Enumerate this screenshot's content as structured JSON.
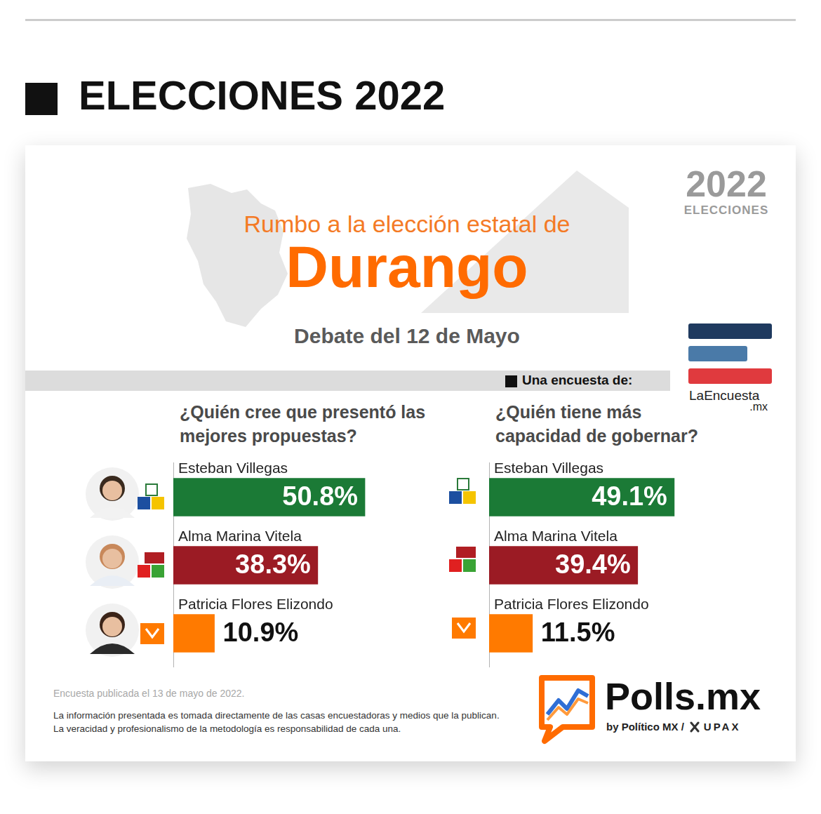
{
  "header": {
    "title": "ELECCIONES 2022"
  },
  "card": {
    "logo_2022": {
      "number": "2022",
      "text": "ELECCIONES"
    },
    "kicker": "Rumbo a la elección estatal de",
    "state": "Durango",
    "subtitle": "Debate del 12 de Mayo",
    "source_label": "Una encuesta de:",
    "source_logo": {
      "name": "LaEncuesta",
      "suffix": ".mx"
    }
  },
  "chart_data": [
    {
      "type": "bar",
      "orientation": "horizontal",
      "title": "¿Quién cree que presentó las mejores propuestas?",
      "categories": [
        "Esteban Villegas",
        "Alma Marina Vitela",
        "Patricia Flores Elizondo"
      ],
      "values": [
        50.8,
        38.3,
        10.9
      ],
      "value_labels": [
        "50.8%",
        "38.3%",
        "10.9%"
      ],
      "colors": [
        "#1b7a36",
        "#9b1b24",
        "#ff7a00"
      ],
      "xlim": [
        0,
        80
      ],
      "tick_labels": false,
      "grid": false,
      "data_labels": true
    },
    {
      "type": "bar",
      "orientation": "horizontal",
      "title": "¿Quién tiene más capacidad de gobernar?",
      "categories": [
        "Esteban Villegas",
        "Alma Marina Vitela",
        "Patricia Flores Elizondo"
      ],
      "values": [
        49.1,
        39.4,
        11.5
      ],
      "value_labels": [
        "49.1%",
        "39.4%",
        "11.5%"
      ],
      "colors": [
        "#1b7a36",
        "#9b1b24",
        "#ff7a00"
      ],
      "xlim": [
        0,
        80
      ],
      "tick_labels": false,
      "grid": false,
      "data_labels": true
    }
  ],
  "footer": {
    "published": "Encuesta publicada el 13 de mayo de 2022.",
    "disclaimer": [
      "La información presentada es tomada directamente de las casas encuestadoras y medios que la publican.",
      "La veracidad y profesionalismo de la metodología es responsabilidad de cada una."
    ],
    "brand": {
      "name": "Polls.mx",
      "by": "by Político MX /",
      "partner": "UPAX"
    }
  }
}
